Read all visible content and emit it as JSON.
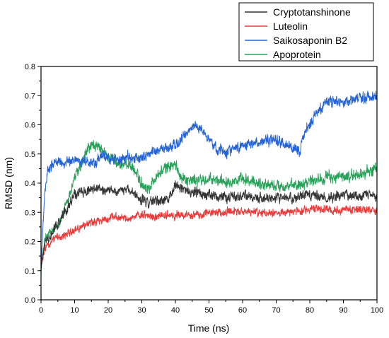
{
  "chart_data": {
    "type": "line",
    "title": "",
    "xlabel": "Time (ns)",
    "ylabel": "RMSD (nm)",
    "xlim": [
      0,
      100
    ],
    "ylim": [
      0.0,
      0.8
    ],
    "xticks": [
      0,
      10,
      20,
      30,
      40,
      50,
      60,
      70,
      80,
      90,
      100
    ],
    "yticks": [
      0.0,
      0.1,
      0.2,
      0.3,
      0.4,
      0.5,
      0.6,
      0.7,
      0.8
    ],
    "grid": false,
    "legend_position": "top-right",
    "series": [
      {
        "name": "Cryptotanshinone",
        "color": "#333333",
        "x": [
          0,
          1,
          2,
          4,
          6,
          8,
          10,
          12,
          14,
          16,
          18,
          20,
          22,
          24,
          26,
          28,
          30,
          32,
          34,
          36,
          38,
          40,
          42,
          44,
          46,
          48,
          50,
          55,
          60,
          65,
          70,
          75,
          80,
          85,
          90,
          95,
          100
        ],
        "values": [
          0.11,
          0.19,
          0.21,
          0.24,
          0.28,
          0.32,
          0.36,
          0.37,
          0.37,
          0.38,
          0.37,
          0.38,
          0.37,
          0.38,
          0.38,
          0.36,
          0.34,
          0.33,
          0.34,
          0.34,
          0.35,
          0.39,
          0.38,
          0.37,
          0.37,
          0.36,
          0.36,
          0.35,
          0.36,
          0.35,
          0.35,
          0.35,
          0.36,
          0.35,
          0.36,
          0.36,
          0.36
        ]
      },
      {
        "name": "Luteolin",
        "color": "#e83b3b",
        "x": [
          0,
          1,
          2,
          4,
          6,
          8,
          10,
          12,
          14,
          16,
          18,
          20,
          22,
          24,
          26,
          28,
          30,
          32,
          34,
          36,
          38,
          40,
          42,
          44,
          46,
          48,
          50,
          55,
          60,
          65,
          70,
          75,
          80,
          85,
          90,
          95,
          100
        ],
        "values": [
          0.12,
          0.17,
          0.19,
          0.21,
          0.22,
          0.23,
          0.24,
          0.25,
          0.26,
          0.27,
          0.27,
          0.28,
          0.29,
          0.28,
          0.28,
          0.28,
          0.29,
          0.29,
          0.28,
          0.29,
          0.29,
          0.29,
          0.29,
          0.29,
          0.29,
          0.29,
          0.3,
          0.3,
          0.3,
          0.3,
          0.3,
          0.3,
          0.31,
          0.31,
          0.31,
          0.31,
          0.3
        ]
      },
      {
        "name": "Saikosaponin B2",
        "color": "#2563d4",
        "x": [
          0,
          1,
          2,
          4,
          6,
          8,
          10,
          12,
          14,
          16,
          18,
          20,
          22,
          24,
          26,
          28,
          30,
          32,
          34,
          36,
          38,
          40,
          42,
          44,
          46,
          48,
          50,
          52,
          55,
          60,
          65,
          70,
          75,
          77,
          78,
          80,
          82,
          85,
          90,
          95,
          100
        ],
        "values": [
          0.12,
          0.35,
          0.45,
          0.47,
          0.47,
          0.47,
          0.48,
          0.48,
          0.47,
          0.47,
          0.49,
          0.49,
          0.48,
          0.48,
          0.49,
          0.48,
          0.49,
          0.5,
          0.51,
          0.52,
          0.52,
          0.53,
          0.55,
          0.58,
          0.6,
          0.58,
          0.55,
          0.52,
          0.51,
          0.53,
          0.54,
          0.55,
          0.52,
          0.5,
          0.56,
          0.6,
          0.64,
          0.68,
          0.68,
          0.69,
          0.7
        ]
      },
      {
        "name": "Apoprotein",
        "color": "#2aa15a",
        "x": [
          0,
          1,
          2,
          4,
          6,
          8,
          10,
          12,
          14,
          16,
          18,
          20,
          22,
          24,
          26,
          28,
          30,
          32,
          34,
          36,
          38,
          40,
          42,
          44,
          46,
          48,
          50,
          55,
          60,
          65,
          70,
          75,
          80,
          85,
          90,
          95,
          100
        ],
        "values": [
          0.1,
          0.2,
          0.22,
          0.24,
          0.28,
          0.34,
          0.42,
          0.46,
          0.52,
          0.53,
          0.51,
          0.49,
          0.48,
          0.46,
          0.47,
          0.44,
          0.4,
          0.38,
          0.42,
          0.44,
          0.46,
          0.46,
          0.42,
          0.41,
          0.41,
          0.41,
          0.41,
          0.41,
          0.41,
          0.4,
          0.39,
          0.39,
          0.41,
          0.42,
          0.42,
          0.43,
          0.45
        ]
      }
    ]
  }
}
